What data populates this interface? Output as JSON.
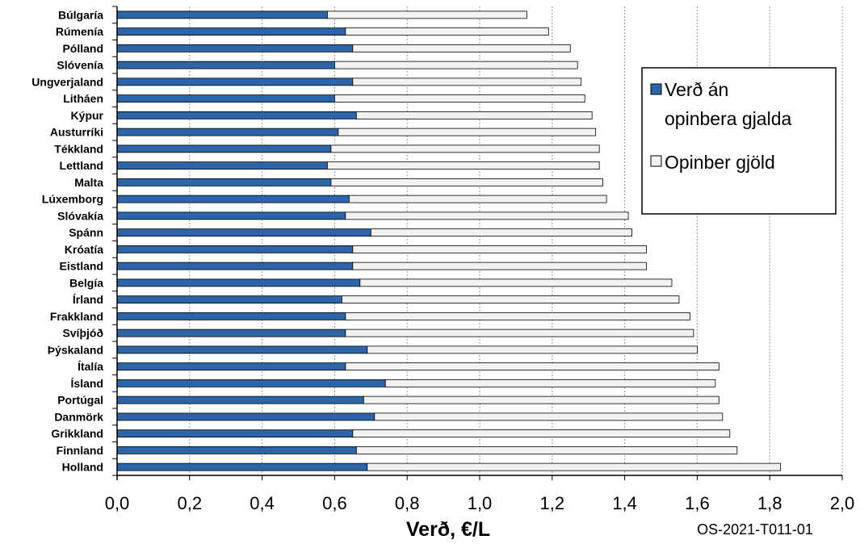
{
  "chart_data": {
    "type": "bar",
    "orientation": "horizontal",
    "stacked": true,
    "categories": [
      "Búlgaría",
      "Rúmenía",
      "Pólland",
      "Slóvenía",
      "Ungverjaland",
      "Litháen",
      "Kýpur",
      "Austurríki",
      "Tékkland",
      "Lettland",
      "Malta",
      "Lúxemborg",
      "Slóvakía",
      "Spánn",
      "Króatía",
      "Eistland",
      "Belgía",
      "Írland",
      "Frakkland",
      "Svíþjóð",
      "Þýskaland",
      "Ítalía",
      "Ísland",
      "Portúgal",
      "Danmörk",
      "Grikkland",
      "Finnland",
      "Holland"
    ],
    "series": [
      {
        "name": "Verð án opinbera gjalda",
        "color": "#2E64A8",
        "values": [
          0.58,
          0.63,
          0.65,
          0.6,
          0.65,
          0.6,
          0.66,
          0.61,
          0.59,
          0.58,
          0.59,
          0.64,
          0.63,
          0.7,
          0.65,
          0.65,
          0.67,
          0.62,
          0.63,
          0.63,
          0.69,
          0.63,
          0.74,
          0.68,
          0.71,
          0.65,
          0.66,
          0.69
        ]
      },
      {
        "name": "Opinber gjöld",
        "color": "#F2F2F2",
        "values": [
          0.55,
          0.56,
          0.6,
          0.67,
          0.63,
          0.69,
          0.65,
          0.71,
          0.74,
          0.75,
          0.75,
          0.71,
          0.78,
          0.72,
          0.81,
          0.81,
          0.86,
          0.93,
          0.95,
          0.96,
          0.91,
          1.03,
          0.91,
          0.98,
          0.96,
          1.04,
          1.05,
          1.14
        ]
      }
    ],
    "xlabel": "Verð, €/L",
    "xlim": [
      0.0,
      2.0
    ],
    "xticks": [
      0.0,
      0.2,
      0.4,
      0.6,
      0.8,
      1.0,
      1.2,
      1.4,
      1.6,
      1.8,
      2.0
    ],
    "xtick_labels": [
      "0,0",
      "0,2",
      "0,4",
      "0,6",
      "0,8",
      "1,0",
      "1,2",
      "1,4",
      "1,6",
      "1,8",
      "2,0"
    ],
    "grid": "vertical dashed",
    "legend_position": "right",
    "legend_labels": [
      "Verð án",
      "opinbera gjalda",
      "Opinber gjöld"
    ],
    "footnote": "OS-2021-T011-01"
  }
}
